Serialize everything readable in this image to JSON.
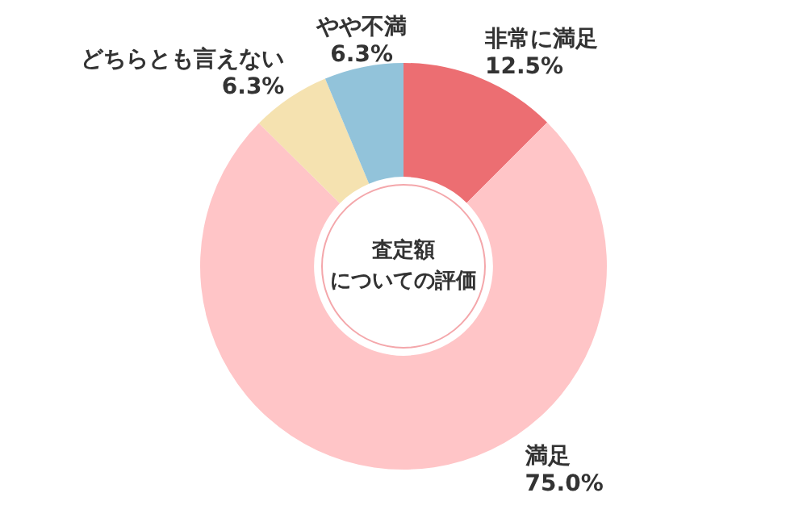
{
  "chart_data": {
    "type": "donut",
    "title": "査定額",
    "subtitle": "についての評価",
    "categories": [
      "非常に満足",
      "満足",
      "どちらとも言えない",
      "やや不満"
    ],
    "values": [
      12.5,
      75.0,
      6.3,
      6.3
    ],
    "value_labels": [
      "12.5%",
      "75.0%",
      "6.3%",
      "6.3%"
    ],
    "colors": [
      "#ec6e72",
      "#ffc5c7",
      "#f5e2b0",
      "#92c3da"
    ],
    "legend": false
  }
}
